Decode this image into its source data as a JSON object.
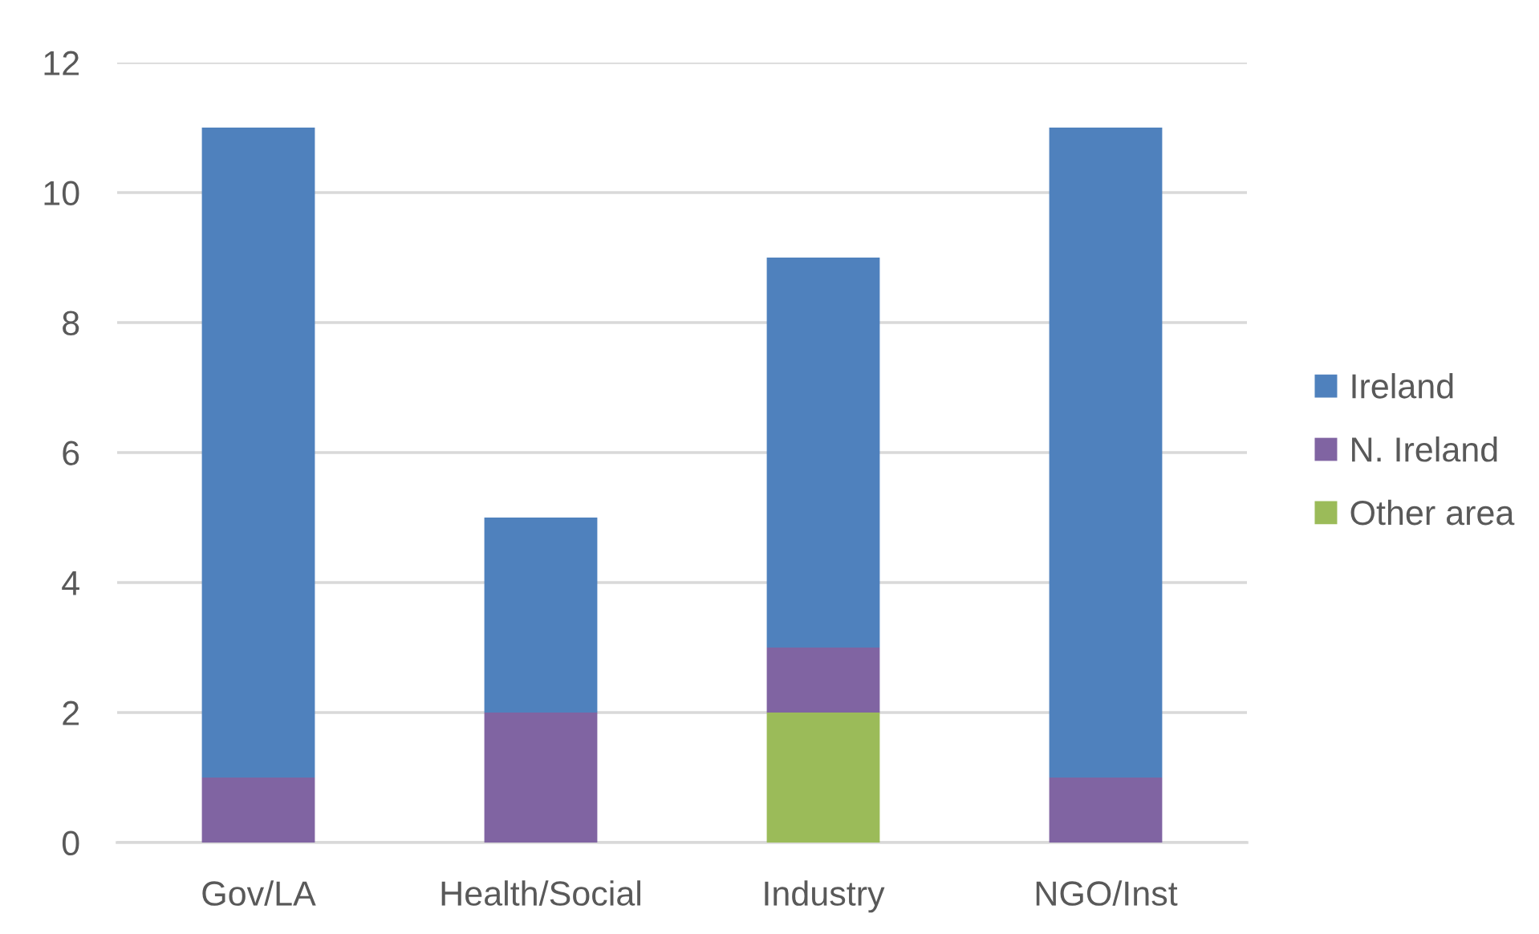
{
  "chart_data": {
    "type": "bar",
    "stacked": true,
    "categories": [
      "Gov/LA",
      "Health/Social",
      "Industry",
      "NGO/Inst"
    ],
    "series": [
      {
        "name": "Other area",
        "color": "#9bbb59",
        "values": [
          null,
          null,
          2,
          null
        ]
      },
      {
        "name": "N. Ireland",
        "color": "#8064a2",
        "values": [
          1,
          2,
          1,
          1
        ]
      },
      {
        "name": "Ireland",
        "color": "#4f81bd",
        "values": [
          10,
          3,
          6,
          10
        ]
      }
    ],
    "ylim": [
      0,
      12
    ],
    "yticks": [
      0,
      2,
      4,
      6,
      8,
      10,
      12
    ],
    "grid": "y",
    "legend": "right"
  }
}
